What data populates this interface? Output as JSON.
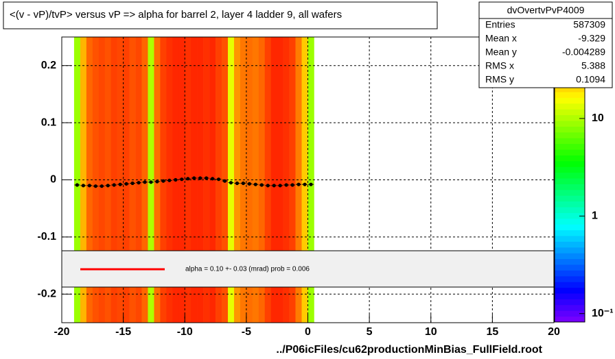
{
  "chart_data": {
    "type": "heatmap-profile",
    "title": "<(v - vP)/tvP> versus   vP => alpha for barrel 2, layer 4 ladder 9, all wafers",
    "x_label": "../P06icFiles/cu62productionMinBias_FullField.root",
    "xlim": [
      -20,
      20
    ],
    "xticks": [
      -20,
      -15,
      -10,
      -5,
      0,
      5,
      10,
      15,
      20
    ],
    "ylim": [
      -0.25,
      0.25
    ],
    "yticks": [
      -0.2,
      -0.1,
      0,
      0.1,
      0.2
    ],
    "zlim": [
      0.082,
      73
    ],
    "zlog": true,
    "zticks": [
      {
        "value": 0.1,
        "label": "10⁻¹"
      },
      1,
      10
    ],
    "grid": true,
    "bins": [
      -19,
      -18.5,
      -18,
      -17.5,
      -17,
      -16.5,
      -16,
      -15.5,
      -15,
      -14.5,
      -14,
      -13.5,
      -13,
      -12.5,
      -12,
      -11.5,
      -11,
      -10.5,
      -10,
      -9.5,
      -9,
      -8.5,
      -8,
      -7.5,
      -7,
      -6.5,
      -6,
      -5.5,
      -5,
      -4.5,
      -4,
      -3.5,
      -3,
      -2.5,
      -2,
      -1.5,
      -1,
      -0.5,
      0,
      0.5
    ],
    "counts": [
      9,
      25,
      40,
      45,
      48,
      45,
      50,
      48,
      50,
      45,
      48,
      40,
      10,
      38,
      50,
      55,
      58,
      58,
      55,
      58,
      58,
      55,
      58,
      50,
      45,
      14,
      30,
      36,
      38,
      36,
      40,
      50,
      58,
      58,
      55,
      50,
      35,
      22,
      9
    ],
    "profile": {
      "x": [
        -18.75,
        -18.25,
        -17.75,
        -17.25,
        -16.75,
        -16.25,
        -15.75,
        -15.25,
        -14.75,
        -14.25,
        -13.75,
        -13.25,
        -12.75,
        -12.25,
        -11.75,
        -11.25,
        -10.75,
        -10.25,
        -9.75,
        -9.25,
        -8.75,
        -8.25,
        -7.75,
        -7.25,
        -6.75,
        -6.25,
        -5.75,
        -5.25,
        -4.75,
        -4.25,
        -3.75,
        -3.25,
        -2.75,
        -2.25,
        -1.75,
        -1.25,
        -0.75,
        -0.25,
        0.25
      ],
      "values": [
        -0.009,
        -0.01,
        -0.01,
        -0.011,
        -0.011,
        -0.01,
        -0.009,
        -0.008,
        -0.007,
        -0.006,
        -0.005,
        -0.004,
        -0.004,
        -0.003,
        -0.002,
        -0.001,
        0,
        0.001,
        0.002,
        0.003,
        0.003,
        0.003,
        0.002,
        0.001,
        -0.002,
        -0.005,
        -0.006,
        -0.006,
        -0.007,
        -0.008,
        -0.009,
        -0.01,
        -0.01,
        -0.01,
        -0.009,
        -0.009,
        -0.008,
        -0.008,
        -0.008
      ],
      "color": "#000000"
    },
    "stats": {
      "name": "dvOvertvPvP4009",
      "rows": [
        [
          "Entries",
          "587309"
        ],
        [
          "Mean x",
          "-9.329"
        ],
        [
          "Mean y",
          "-0.004289"
        ],
        [
          "RMS x",
          "5.388"
        ],
        [
          "RMS y",
          "0.1094"
        ]
      ]
    },
    "fit": {
      "label": "alpha =    0.10 +-  0.03 (mrad) prob = 0.006",
      "color": "#ff0000"
    }
  }
}
